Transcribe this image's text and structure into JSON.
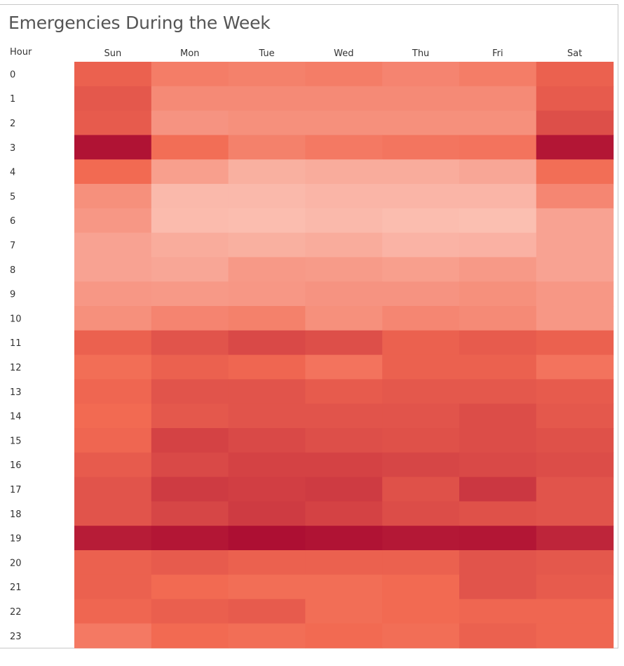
{
  "chart_data": {
    "type": "heatmap",
    "title": "Emergencies During the Week",
    "row_header": "Hour",
    "columns": [
      "Sun",
      "Mon",
      "Tue",
      "Wed",
      "Thu",
      "Fri",
      "Sat"
    ],
    "rows": [
      "0",
      "1",
      "2",
      "3",
      "4",
      "5",
      "6",
      "7",
      "8",
      "9",
      "10",
      "11",
      "12",
      "13",
      "14",
      "15",
      "16",
      "17",
      "18",
      "19",
      "20",
      "21",
      "22",
      "23"
    ],
    "values": [
      [
        55,
        40,
        38,
        40,
        36,
        40,
        55
      ],
      [
        60,
        33,
        33,
        33,
        33,
        33,
        58
      ],
      [
        58,
        28,
        30,
        30,
        30,
        30,
        65
      ],
      [
        98,
        48,
        38,
        42,
        44,
        45,
        96
      ],
      [
        50,
        22,
        13,
        15,
        15,
        18,
        48
      ],
      [
        30,
        8,
        8,
        10,
        10,
        10,
        35
      ],
      [
        26,
        7,
        6,
        8,
        6,
        5,
        20
      ],
      [
        20,
        15,
        13,
        15,
        11,
        12,
        20
      ],
      [
        20,
        18,
        25,
        24,
        22,
        25,
        20
      ],
      [
        26,
        25,
        26,
        28,
        28,
        30,
        26
      ],
      [
        30,
        36,
        38,
        30,
        35,
        33,
        26
      ],
      [
        55,
        62,
        68,
        65,
        55,
        58,
        55
      ],
      [
        48,
        55,
        52,
        45,
        55,
        55,
        45
      ],
      [
        52,
        62,
        62,
        58,
        60,
        60,
        58
      ],
      [
        50,
        60,
        62,
        62,
        62,
        66,
        60
      ],
      [
        52,
        72,
        68,
        65,
        64,
        66,
        64
      ],
      [
        58,
        68,
        72,
        72,
        70,
        68,
        66
      ],
      [
        62,
        76,
        74,
        76,
        64,
        78,
        62
      ],
      [
        62,
        70,
        76,
        72,
        66,
        64,
        62
      ],
      [
        93,
        96,
        100,
        98,
        95,
        96,
        88
      ],
      [
        55,
        58,
        55,
        55,
        55,
        62,
        60
      ],
      [
        55,
        50,
        48,
        48,
        50,
        62,
        58
      ],
      [
        52,
        56,
        58,
        48,
        50,
        52,
        52
      ],
      [
        42,
        50,
        48,
        50,
        48,
        55,
        52
      ]
    ],
    "color_scale": [
      "#fcc8bc",
      "#f26a52",
      "#ad0f33"
    ]
  }
}
